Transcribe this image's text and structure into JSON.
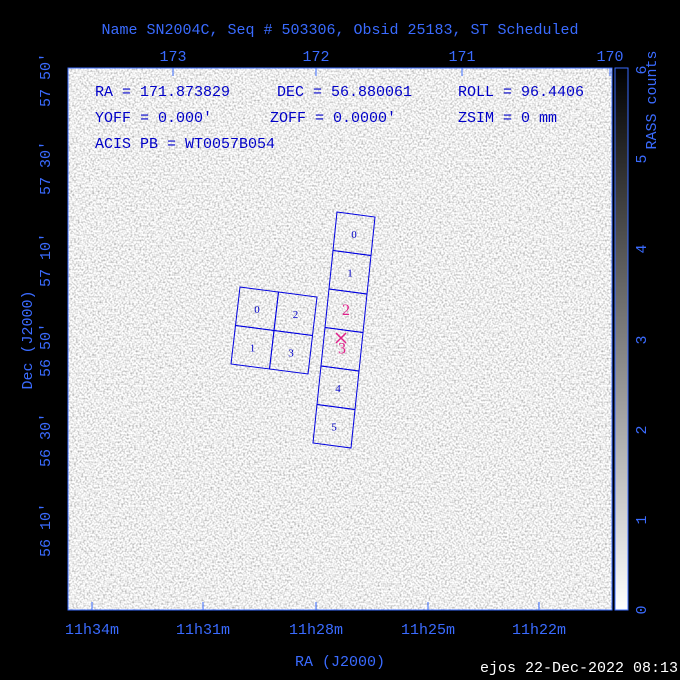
{
  "title": "Name SN2004C, Seq # 503306, Obsid 25183, ST Scheduled",
  "info": [
    "RA = 171.873829",
    "DEC = 56.880061",
    "ROLL = 96.4406",
    "YOFF = 0.000'",
    "ZOFF = 0.0000'",
    "ZSIM = 0 mm",
    "ACIS PB = WT0057B054"
  ],
  "top_ticks": [
    "173",
    "172",
    "171",
    "170"
  ],
  "left_ticks": [
    "57 50'",
    "57 30'",
    "57 10'",
    "56 50'",
    "56 30'",
    "56 10'"
  ],
  "bottom_ticks": [
    "11h34m",
    "11h31m",
    "11h28m",
    "11h25m",
    "11h22m"
  ],
  "x_label": "RA (J2000)",
  "y_label": "Dec (J2000)",
  "colorbar": {
    "label": "RASS counts",
    "ticks": [
      "0",
      "1",
      "2",
      "3",
      "4",
      "5",
      "6"
    ]
  },
  "acis_i": [
    "0",
    "2",
    "1",
    "3"
  ],
  "acis_s": [
    "0",
    "1",
    "2",
    "3",
    "4",
    "5"
  ],
  "footer": "ejos 22-Dec-2022 08:13"
}
